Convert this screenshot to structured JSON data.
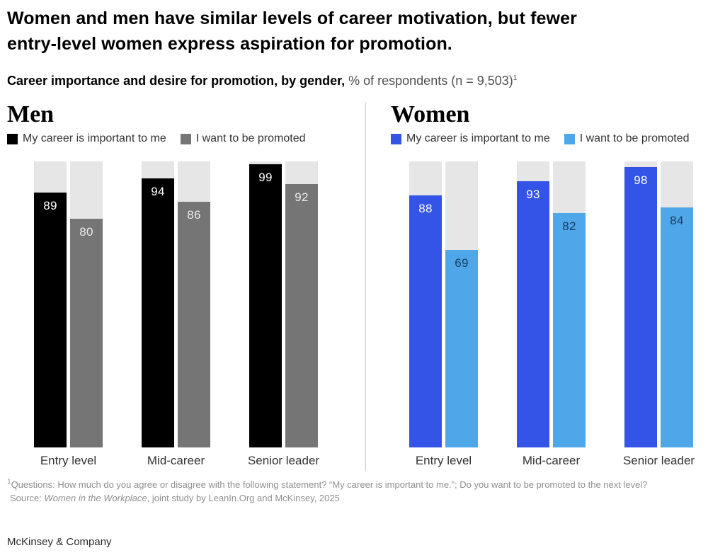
{
  "header": {
    "title_line1": "Women and men have similar levels of career motivation, but fewer",
    "title_line2": "entry-level women express aspiration for promotion.",
    "subtitle_bold": "Career importance and desire for promotion, by gender,",
    "subtitle_regular": " % of respondents (n = 9,503)",
    "subtitle_superscript": "1"
  },
  "colors": {
    "track": "#e6e6e6",
    "divider": "#c9c9c9",
    "men_primary": "#000000",
    "men_secondary": "#757575",
    "women_primary": "#3354e6",
    "women_secondary": "#4da7e8"
  },
  "chart_data": [
    {
      "type": "bar",
      "title": "Men",
      "categories": [
        "Entry level",
        "Mid-career",
        "Senior leader"
      ],
      "series": [
        {
          "name": "My career is important to me",
          "color": "#000000",
          "label_color": "#ffffff",
          "values": [
            89,
            94,
            99
          ]
        },
        {
          "name": "I want to be promoted",
          "color": "#757575",
          "label_color": "#ececec",
          "values": [
            80,
            86,
            92
          ]
        }
      ],
      "ylim": [
        0,
        100
      ],
      "track_color": "#e6e6e6",
      "legend_position": "top",
      "grid": false
    },
    {
      "type": "bar",
      "title": "Women",
      "categories": [
        "Entry level",
        "Mid-career",
        "Senior leader"
      ],
      "series": [
        {
          "name": "My career is important to me",
          "color": "#3354e6",
          "label_color": "#ffffff",
          "values": [
            88,
            93,
            98
          ]
        },
        {
          "name": "I want to be promoted",
          "color": "#4da7e8",
          "label_color": "#1b3a5e",
          "values": [
            69,
            82,
            84
          ]
        }
      ],
      "ylim": [
        0,
        100
      ],
      "track_color": "#e6e6e6",
      "legend_position": "top",
      "grid": false
    }
  ],
  "footnotes": {
    "marker": "1",
    "line1": "Questions: How much do you agree or disagree with the following statement? “My career is important to me.”; Do you want to be promoted to the next level?",
    "source_prefix": "Source: ",
    "source_italic": "Women in the Workplace",
    "source_suffix": ", joint study by LeanIn.Org and McKinsey, 2025"
  },
  "footer": {
    "brand": "McKinsey & Company"
  }
}
